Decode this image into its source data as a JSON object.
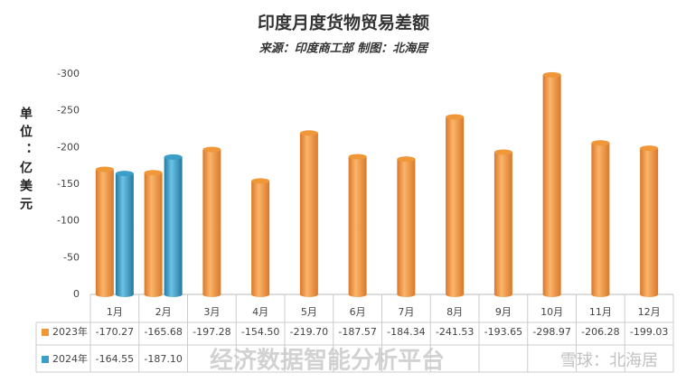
{
  "chart_data": {
    "type": "bar",
    "title": "印度月度货物贸易差额",
    "subtitle": "来源：印度商工部 制图：北海居",
    "y_label": "单位：亿美元",
    "categories": [
      "1月",
      "2月",
      "3月",
      "4月",
      "5月",
      "6月",
      "7月",
      "8月",
      "9月",
      "10月",
      "11月",
      "12月"
    ],
    "series": [
      {
        "name": "2023年",
        "color": "#f0973a",
        "values": [
          -170.27,
          -165.68,
          -197.28,
          -154.5,
          -219.7,
          -187.57,
          -184.34,
          -241.53,
          -193.65,
          -298.97,
          -206.28,
          -199.03
        ],
        "value_labels": [
          "-170.27",
          "-165.68",
          "-197.28",
          "-154.50",
          "-219.70",
          "-187.57",
          "-184.34",
          "-241.53",
          "-193.65",
          "-298.97",
          "-206.28",
          "-199.03"
        ]
      },
      {
        "name": "2024年",
        "color": "#3b9fc9",
        "values": [
          -164.55,
          -187.1,
          null,
          null,
          null,
          null,
          null,
          null,
          null,
          null,
          null,
          null
        ],
        "value_labels": [
          "-164.55",
          "-187.10",
          null,
          null,
          null,
          null,
          null,
          null,
          null,
          null,
          null,
          null
        ]
      }
    ],
    "ylim": [
      0,
      -300
    ],
    "yticks": [
      0,
      -50,
      -100,
      -150,
      -200,
      -250,
      -300
    ],
    "grid": false,
    "watermarks": [
      "经济数据智能分析平台",
      "雪球：北海居"
    ]
  }
}
